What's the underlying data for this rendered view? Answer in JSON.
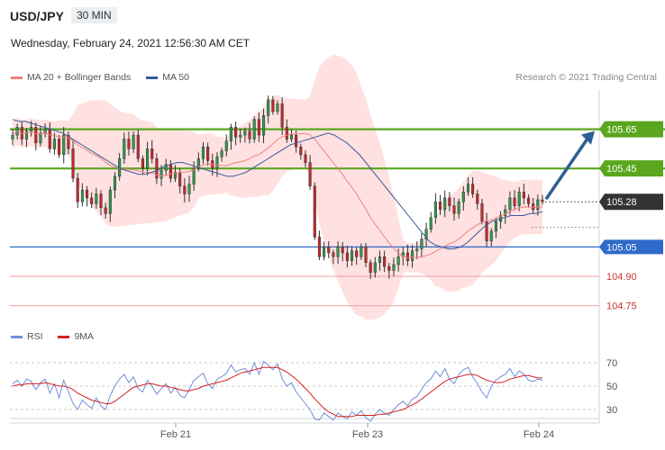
{
  "header": {
    "symbol": "USD/JPY",
    "timeframe": "30 MIN",
    "datetime": "Wednesday, February 24, 2021 12:56:30 AM CET",
    "copyright": "Research © 2021 Trading Central"
  },
  "legend": {
    "ma20_label": "MA 20 + Bollinger Bands",
    "ma50_label": "MA 50",
    "ma20_color": "#f08080",
    "ma50_color": "#3a5a9a"
  },
  "rsi_legend": {
    "rsi_label": "RSI",
    "ma9_label": "9MA",
    "rsi_color": "#6f8fd8",
    "ma9_color": "#d42020"
  },
  "chart_data": [
    {
      "type": "candlestick",
      "x_ticks": [
        "Feb 21",
        "Feb 23",
        "Feb 24"
      ],
      "ylim": [
        104.68,
        105.85
      ],
      "levels": [
        {
          "value": 105.65,
          "label": "105.65",
          "kind": "resistance",
          "color": "#5aa61e"
        },
        {
          "value": 105.45,
          "label": "105.45",
          "kind": "resistance",
          "color": "#5aa61e"
        },
        {
          "value": 105.28,
          "label": "105.28",
          "kind": "current",
          "color": "#333333"
        },
        {
          "value": 105.05,
          "label": "105.05",
          "kind": "pivot",
          "color": "#2e6ac8"
        },
        {
          "value": 104.9,
          "label": "104.90",
          "kind": "support",
          "color": "#cc3333"
        },
        {
          "value": 104.75,
          "label": "104.75",
          "kind": "support",
          "color": "#cc3333"
        }
      ],
      "target_arrow": {
        "from": 105.28,
        "to": 105.65
      },
      "closes": [
        105.62,
        105.66,
        105.6,
        105.64,
        105.66,
        105.58,
        105.63,
        105.65,
        105.55,
        105.6,
        105.52,
        105.62,
        105.55,
        105.4,
        105.28,
        105.34,
        105.3,
        105.27,
        105.32,
        105.25,
        105.22,
        105.34,
        105.41,
        105.5,
        105.6,
        105.55,
        105.62,
        105.5,
        105.45,
        105.55,
        105.5,
        105.4,
        105.44,
        105.47,
        105.4,
        105.43,
        105.36,
        105.32,
        105.37,
        105.45,
        105.5,
        105.56,
        105.49,
        105.45,
        105.51,
        105.54,
        105.59,
        105.66,
        105.61,
        105.62,
        105.64,
        105.6,
        105.7,
        105.62,
        105.72,
        105.8,
        105.74,
        105.78,
        105.66,
        105.6,
        105.62,
        105.56,
        105.52,
        105.48,
        105.36,
        105.1,
        105.0,
        105.05,
        105.02,
        105.0,
        105.05,
        105.02,
        104.98,
        105.03,
        105.0,
        105.05,
        104.97,
        104.92,
        104.97,
        105.0,
        104.95,
        104.93,
        104.96,
        105.0,
        105.02,
        104.98,
        105.03,
        105.04,
        105.09,
        105.14,
        105.2,
        105.28,
        105.24,
        105.3,
        105.26,
        105.22,
        105.28,
        105.33,
        105.37,
        105.32,
        105.27,
        105.18,
        105.08,
        105.13,
        105.18,
        105.21,
        105.24,
        105.3,
        105.26,
        105.33,
        105.3,
        105.27,
        105.24,
        105.29,
        105.28
      ],
      "ma50": [
        105.7,
        105.69,
        105.69,
        105.68,
        105.67,
        105.66,
        105.65,
        105.64,
        105.63,
        105.61,
        105.59,
        105.57,
        105.55,
        105.53,
        105.51,
        105.49,
        105.47,
        105.45,
        105.44,
        105.43,
        105.42,
        105.42,
        105.43,
        105.44,
        105.46,
        105.47,
        105.48,
        105.48,
        105.47,
        105.46,
        105.45,
        105.44,
        105.43,
        105.42,
        105.41,
        105.41,
        105.42,
        105.43,
        105.45,
        105.47,
        105.49,
        105.51,
        105.53,
        105.55,
        105.57,
        105.58,
        105.59,
        105.6,
        105.61,
        105.62,
        105.63,
        105.62,
        105.6,
        105.58,
        105.55,
        105.52,
        105.48,
        105.44,
        105.4,
        105.36,
        105.32,
        105.28,
        105.24,
        105.2,
        105.16,
        105.12,
        105.08,
        105.06,
        105.05,
        105.04,
        105.04,
        105.05,
        105.07,
        105.1,
        105.13,
        105.16,
        105.18,
        105.19,
        105.2,
        105.21,
        105.21,
        105.21,
        105.22,
        105.22,
        105.23
      ],
      "rsi": {
        "ylim": [
          20,
          80
        ],
        "ticks": [
          70,
          50,
          30
        ],
        "rsi_values": [
          52,
          55,
          50,
          56,
          54,
          47,
          53,
          56,
          44,
          52,
          40,
          55,
          45,
          35,
          30,
          38,
          34,
          31,
          40,
          33,
          30,
          42,
          50,
          56,
          60,
          53,
          58,
          48,
          45,
          55,
          50,
          43,
          48,
          52,
          44,
          49,
          42,
          40,
          47,
          55,
          58,
          61,
          52,
          48,
          56,
          58,
          61,
          68,
          62,
          64,
          65,
          60,
          70,
          60,
          71,
          68,
          64,
          69,
          56,
          50,
          53,
          45,
          40,
          35,
          30,
          22,
          21,
          27,
          24,
          21,
          27,
          24,
          22,
          28,
          25,
          29,
          23,
          20,
          26,
          30,
          27,
          25,
          30,
          34,
          37,
          33,
          39,
          41,
          47,
          53,
          56,
          63,
          58,
          65,
          56,
          52,
          60,
          64,
          66,
          58,
          52,
          45,
          40,
          50,
          55,
          58,
          60,
          65,
          58,
          63,
          60,
          55,
          54,
          56,
          55
        ],
        "ma9_values": [
          50,
          51,
          51,
          52,
          52,
          52,
          52,
          53,
          52,
          51,
          50,
          50,
          49,
          47,
          44,
          42,
          40,
          38,
          37,
          36,
          35,
          35,
          37,
          40,
          43,
          46,
          49,
          50,
          51,
          52,
          52,
          51,
          50,
          50,
          49,
          48,
          47,
          46,
          46,
          47,
          48,
          50,
          51,
          52,
          53,
          54,
          55,
          57,
          59,
          61,
          62,
          63,
          64,
          65,
          66,
          66,
          66,
          66,
          64,
          62,
          59,
          56,
          52,
          48,
          44,
          39,
          35,
          31,
          28,
          26,
          24,
          24,
          24,
          24,
          25,
          25,
          25,
          25,
          25,
          26,
          26,
          27,
          28,
          29,
          30,
          32,
          34,
          36,
          39,
          42,
          45,
          48,
          51,
          54,
          56,
          57,
          58,
          59,
          60,
          60,
          59,
          57,
          55,
          54,
          53,
          53,
          54,
          56,
          57,
          58,
          59,
          59,
          58,
          57,
          57
        ]
      }
    }
  ]
}
